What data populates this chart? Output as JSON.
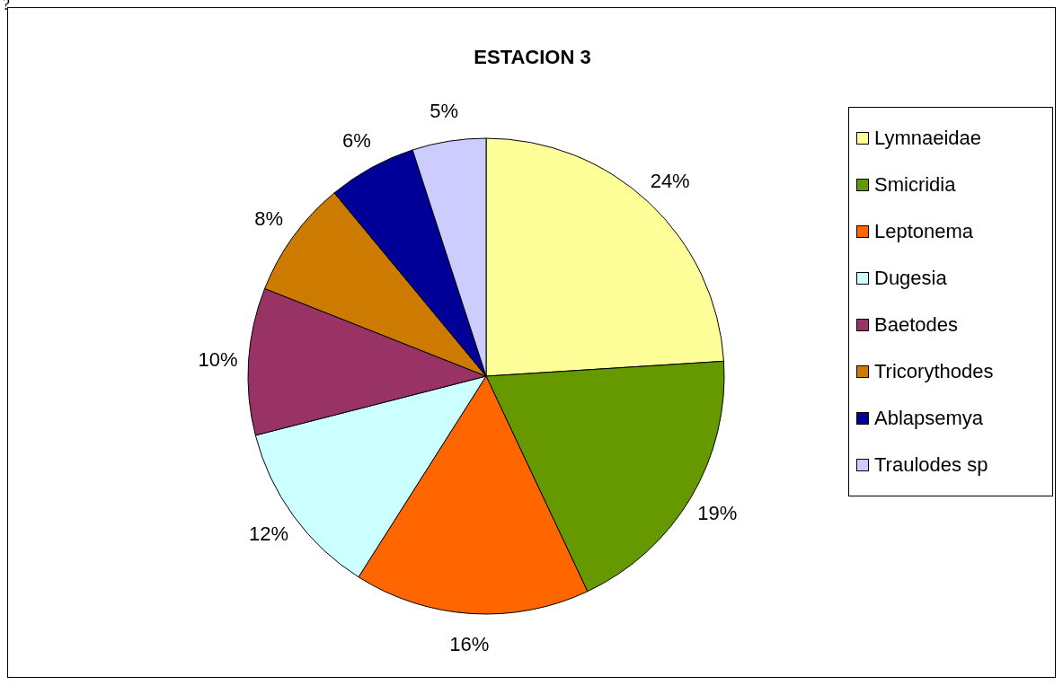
{
  "chart_data": {
    "type": "pie",
    "title": "ESTACION 3",
    "categories": [
      "Lymnaeidae",
      "Smicridia",
      "Leptonema",
      "Dugesia",
      "Baetodes",
      "Tricorythodes",
      "Ablapsemya",
      "Traulodes sp"
    ],
    "values": [
      24,
      19,
      16,
      12,
      10,
      8,
      6,
      5
    ],
    "value_labels": [
      "24%",
      "19%",
      "16%",
      "12%",
      "10%",
      "8%",
      "6%",
      "5%"
    ],
    "colors": [
      "#ffff99",
      "#669900",
      "#ff6600",
      "#ccffff",
      "#993366",
      "#cc7a00",
      "#000099",
      "#ccccff"
    ],
    "legend": "right",
    "annotations": [
      "?"
    ]
  }
}
